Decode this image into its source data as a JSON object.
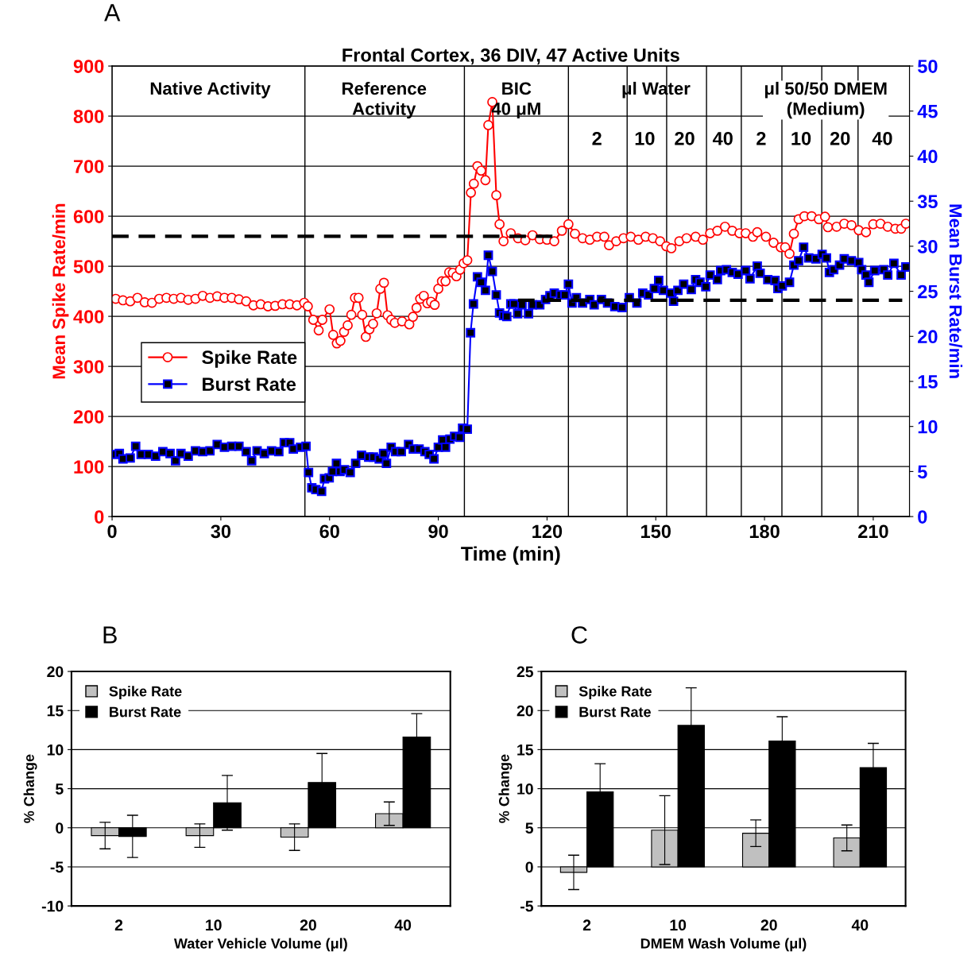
{
  "chart_data": [
    {
      "type": "line",
      "title": "Frontal Cortex, 36 DIV, 47 Active Units",
      "xlabel": "Time (min)",
      "ylabel": "Mean Spike Rate/min",
      "y2label": "Mean Burst Rate/min",
      "xlim": [
        0,
        220
      ],
      "xticks": [
        0,
        30,
        60,
        90,
        120,
        150,
        180,
        210
      ],
      "ylim": [
        0,
        900
      ],
      "yticks": [
        0,
        100,
        200,
        300,
        400,
        500,
        600,
        700,
        800,
        900
      ],
      "y2lim": [
        0,
        50
      ],
      "y2ticks": [
        0,
        5,
        10,
        15,
        20,
        25,
        30,
        35,
        40,
        45,
        50
      ],
      "grid": "y",
      "legend": "center left",
      "annotations": [
        "A",
        "Native Activity",
        "Reference\nActivity",
        "BIC\n40 μM",
        "μl Water",
        "μl 50/50 DMEM\n(Medium)",
        "2",
        "10",
        "20",
        "40",
        "2",
        "10",
        "20",
        "40"
      ],
      "ref_lines": [
        {
          "axis": "x",
          "value": 53.2,
          "color": "#000000"
        },
        {
          "axis": "x",
          "value": 97.2,
          "color": "#000000"
        },
        {
          "axis": "x",
          "value": 125.9,
          "color": "#000000"
        },
        {
          "axis": "x",
          "value": 142.1,
          "color": "#000000"
        },
        {
          "axis": "x",
          "value": 153,
          "color": "#000000"
        },
        {
          "axis": "x",
          "value": 164,
          "color": "#000000"
        },
        {
          "axis": "x",
          "value": 173.6,
          "color": "#000000"
        },
        {
          "axis": "x",
          "value": 184.8,
          "color": "#000000"
        },
        {
          "axis": "x",
          "value": 195.8,
          "color": "#000000"
        },
        {
          "axis": "x",
          "value": 205.8,
          "color": "#000000"
        }
      ],
      "series": [
        {
          "name": "Spike Rate",
          "color": "#ff0000",
          "marker": "circle",
          "line_style": "solid",
          "x": [
            1,
            3,
            5,
            7,
            9,
            11,
            13,
            15,
            17,
            19,
            21,
            23,
            25,
            27,
            29,
            31,
            33,
            35,
            37,
            39,
            41,
            43,
            45,
            47,
            49,
            51,
            53,
            54,
            55.5,
            57,
            58,
            60,
            61,
            62,
            63,
            64,
            65,
            66,
            67,
            68,
            69,
            70,
            71,
            72,
            73,
            74,
            75,
            76,
            77,
            78,
            80,
            82,
            83,
            84,
            85,
            86,
            87,
            88,
            89,
            90,
            91,
            92,
            93,
            94,
            95,
            96,
            97,
            98,
            99,
            99.8,
            100.8,
            101.8,
            103,
            103.8,
            104.9,
            106,
            106.9,
            108,
            110,
            112,
            114,
            116,
            118,
            120,
            122,
            124.1,
            125.9,
            127.7,
            129.8,
            131.8,
            133.8,
            135.8,
            137.1,
            139.1,
            141.1,
            143.1,
            145.2,
            147.2,
            149.2,
            151.2,
            152.9,
            154.3,
            156.5,
            158.5,
            161,
            163,
            165,
            167,
            169.1,
            171.1,
            173.1,
            174.8,
            176.8,
            178,
            180.4,
            182.5,
            184.5,
            185.7,
            186.9,
            188.1,
            189.4,
            191,
            193,
            195,
            196.7,
            197.5,
            199.9,
            202,
            204,
            206,
            208,
            210,
            212,
            214,
            216.1,
            217.7,
            219
          ],
          "values": [
            435,
            432,
            430,
            437,
            428,
            427,
            435,
            437,
            435,
            437,
            433,
            435,
            441,
            437,
            440,
            437,
            437,
            434,
            430,
            422,
            424,
            420,
            421,
            424,
            424,
            422,
            427,
            420,
            393,
            372,
            393,
            414,
            363,
            346,
            351,
            369,
            382,
            403,
            437,
            437,
            403,
            359,
            374,
            385,
            406,
            455,
            467,
            402,
            393,
            387,
            390,
            384,
            399,
            417,
            435,
            441,
            426,
            429,
            423,
            455,
            470,
            470,
            488,
            487,
            480,
            493,
            506,
            512,
            647,
            665,
            700,
            691,
            672,
            782,
            828,
            642,
            584,
            550,
            566,
            556,
            552,
            562,
            554,
            553,
            550,
            571,
            584,
            565,
            556,
            553,
            559,
            559,
            542,
            550,
            556,
            559,
            553,
            559,
            556,
            550,
            540,
            536,
            550,
            556,
            559,
            553,
            566,
            571,
            579,
            571,
            566,
            566,
            559,
            568,
            559,
            547,
            538,
            538,
            525,
            565,
            594,
            600,
            600,
            594,
            599,
            578,
            579,
            585,
            582,
            572,
            568,
            584,
            585,
            579,
            575,
            575,
            585
          ]
        },
        {
          "name": "Burst Rate",
          "color": "#0000ff",
          "axis": "y2",
          "marker": "square",
          "line_style": "solid",
          "x": [
            1,
            2,
            3,
            5,
            6.5,
            8,
            10,
            12,
            14,
            16,
            17.5,
            19,
            21,
            23,
            25,
            27,
            29,
            31,
            33,
            35,
            37,
            38.5,
            40,
            42,
            44,
            46,
            47.5,
            49,
            50,
            52,
            53.5,
            54.2,
            55.1,
            56.2,
            57.8,
            58.6,
            59.9,
            60.8,
            61.9,
            62.9,
            64.1,
            65.7,
            67.2,
            68.8,
            70.8,
            72.1,
            73.7,
            74.9,
            75.7,
            77,
            78.2,
            79.8,
            81.8,
            83.1,
            84.7,
            86.3,
            87.5,
            88.8,
            90,
            91.2,
            92,
            93.2,
            94.5,
            95.9,
            96.7,
            98,
            98.9,
            99.7,
            100.8,
            101.8,
            103,
            103.8,
            104.9,
            106,
            106.9,
            108,
            108.9,
            110,
            110.9,
            111.9,
            113.1,
            114.9,
            116,
            118,
            119.6,
            120.8,
            122,
            123.7,
            124.9,
            125.9,
            126.9,
            128.1,
            129.8,
            131.8,
            133,
            135,
            136.7,
            138.7,
            140.7,
            142.7,
            144.8,
            146.4,
            148,
            149.6,
            150.8,
            152.1,
            154.1,
            154.9,
            156.1,
            157.7,
            159.8,
            161,
            162.2,
            163.8,
            165,
            167,
            167.9,
            169.5,
            171.1,
            172.7,
            174.8,
            176,
            178,
            178.8,
            180.9,
            182.9,
            183.7,
            184.9,
            186.9,
            188.1,
            189.4,
            190.8,
            192.2,
            194.2,
            195.9,
            197.1,
            197.9,
            199.1,
            200.7,
            202,
            204,
            206,
            206.8,
            208,
            208.8,
            210.4,
            212.9,
            214,
            215.7,
            217.7,
            219
          ],
          "values": [
            6.9,
            7.0,
            6.4,
            6.5,
            7.8,
            6.9,
            6.9,
            6.7,
            7.2,
            7.0,
            6.2,
            7.0,
            6.7,
            7.3,
            7.2,
            7.3,
            8.0,
            7.7,
            7.8,
            7.8,
            7.2,
            6.2,
            7.3,
            7.0,
            7.3,
            7.2,
            8.2,
            8.2,
            7.5,
            7.7,
            7.8,
            4.9,
            3.2,
            3.0,
            2.8,
            4.2,
            4.3,
            5.0,
            5.9,
            5.0,
            5.2,
            4.9,
            5.9,
            6.8,
            6.6,
            6.6,
            6.4,
            7.0,
            5.9,
            7.7,
            7.2,
            7.2,
            8.0,
            7.5,
            7.5,
            7.2,
            6.9,
            6.4,
            7.7,
            8.5,
            7.7,
            8.6,
            8.9,
            8.8,
            9.8,
            9.7,
            20.4,
            23.6,
            26.6,
            26.0,
            25.1,
            29.0,
            27.2,
            24.6,
            22.6,
            22.3,
            22.2,
            23.6,
            23.6,
            22.5,
            23.5,
            22.5,
            23.5,
            23.5,
            24.1,
            24.5,
            24.8,
            24.6,
            24.6,
            25.8,
            23.7,
            24.3,
            23.7,
            24.1,
            23.5,
            24.1,
            23.7,
            23.3,
            23.2,
            24.3,
            23.7,
            24.8,
            24.6,
            25.3,
            26.2,
            25.1,
            24.8,
            23.9,
            25.1,
            25.8,
            25.2,
            26.3,
            26.0,
            25.5,
            26.8,
            26.3,
            27.3,
            27.4,
            27.1,
            26.9,
            27.3,
            26.4,
            27.8,
            27.0,
            26.3,
            26.2,
            25.3,
            25.6,
            26.0,
            27.9,
            28.4,
            29.9,
            28.7,
            28.6,
            29.1,
            28.7,
            27.1,
            27.4,
            27.9,
            28.6,
            28.4,
            28.2,
            27.4,
            26.8,
            26.0,
            27.3,
            27.4,
            26.8,
            28.1,
            26.8,
            27.7
          ]
        },
        {
          "type": "line",
          "color": "#000000",
          "marker": "none",
          "line_style": "dashed",
          "x": [
            0,
            122
          ],
          "values": [
            560,
            560
          ]
        },
        {
          "type": "line",
          "color": "#000000",
          "axis": "y2",
          "marker": "none",
          "line_style": "dashed",
          "x": [
            112,
            218
          ],
          "values": [
            24,
            24
          ]
        }
      ]
    },
    {
      "type": "bar",
      "xlabel": "Water Vehicle Volume (μl)",
      "ylabel": "% Change",
      "categories": [
        "2",
        "10",
        "20",
        "40"
      ],
      "ylim": [
        -10,
        20
      ],
      "yticks": [
        -10,
        -5,
        0,
        5,
        10,
        15,
        20
      ],
      "grid": "y",
      "legend": "top left",
      "annotations": [
        "B"
      ],
      "series": [
        {
          "name": "Spike Rate",
          "color": "#c0c0c0",
          "values": [
            -1.0,
            -1.0,
            -1.2,
            1.8
          ],
          "errors": [
            1.7,
            1.5,
            1.7,
            1.5
          ]
        },
        {
          "name": "Burst Rate",
          "color": "#000000",
          "values": [
            -1.1,
            3.2,
            5.8,
            11.6
          ],
          "errors": [
            2.7,
            3.5,
            3.7,
            3.0
          ]
        }
      ]
    },
    {
      "type": "bar",
      "xlabel": "DMEM Wash Volume (μl)",
      "ylabel": "% Change",
      "categories": [
        "2",
        "10",
        "20",
        "40"
      ],
      "ylim": [
        -5,
        25
      ],
      "yticks": [
        -5,
        0,
        5,
        10,
        15,
        20,
        25
      ],
      "grid": "y",
      "legend": "top left",
      "annotations": [
        "C"
      ],
      "series": [
        {
          "name": "Spike Rate",
          "color": "#c0c0c0",
          "values": [
            -0.7,
            4.7,
            4.3,
            3.7
          ],
          "errors": [
            2.2,
            4.4,
            1.7,
            1.65
          ]
        },
        {
          "name": "Burst Rate",
          "color": "#000000",
          "values": [
            9.6,
            18.1,
            16.1,
            12.7
          ],
          "errors": [
            3.6,
            4.8,
            3.1,
            3.1
          ]
        }
      ]
    }
  ]
}
